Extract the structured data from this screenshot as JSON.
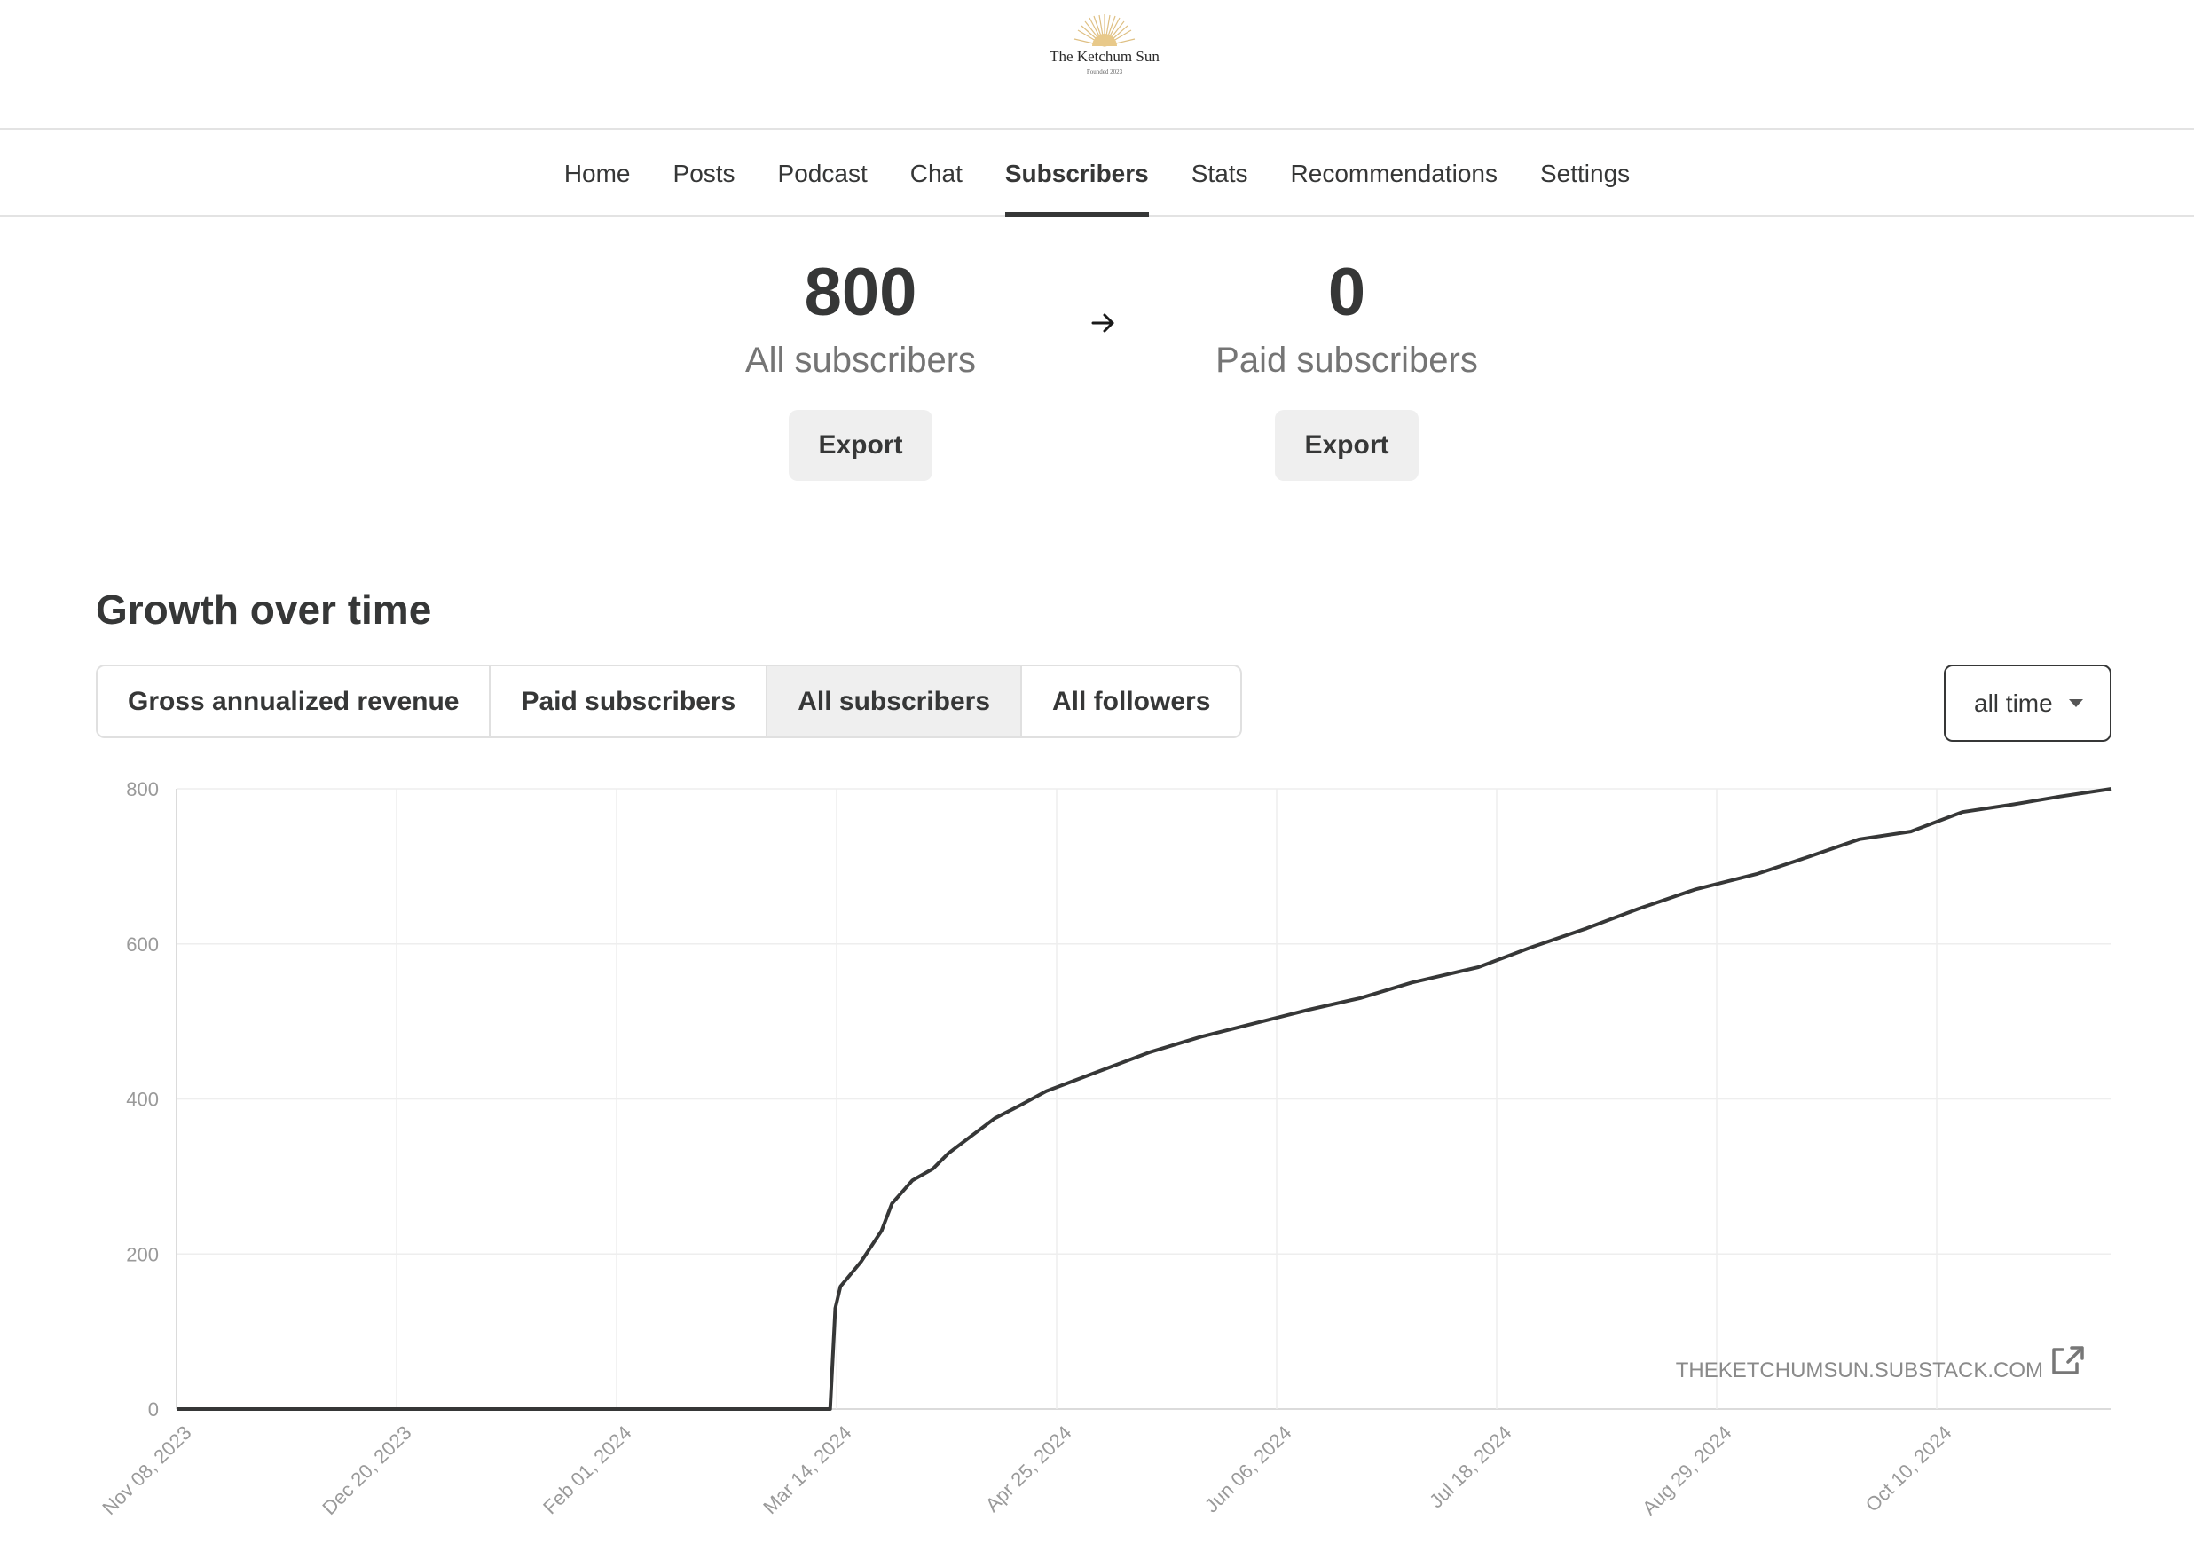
{
  "brand": {
    "name": "The Ketchum Sun",
    "tagline": "Founded 2023"
  },
  "nav": {
    "items": [
      {
        "label": "Home",
        "active": false
      },
      {
        "label": "Posts",
        "active": false
      },
      {
        "label": "Podcast",
        "active": false
      },
      {
        "label": "Chat",
        "active": false
      },
      {
        "label": "Subscribers",
        "active": true
      },
      {
        "label": "Stats",
        "active": false
      },
      {
        "label": "Recommendations",
        "active": false
      },
      {
        "label": "Settings",
        "active": false
      }
    ]
  },
  "stats": {
    "all": {
      "value": "800",
      "label": "All subscribers",
      "button": "Export"
    },
    "arrow_icon": "arrow-right-icon",
    "paid": {
      "value": "0",
      "label": "Paid subscribers",
      "button": "Export"
    }
  },
  "growth": {
    "title": "Growth over time",
    "tabs": [
      {
        "label": "Gross annualized revenue",
        "active": false
      },
      {
        "label": "Paid subscribers",
        "active": false
      },
      {
        "label": "All subscribers",
        "active": true
      },
      {
        "label": "All followers",
        "active": false
      }
    ],
    "range": {
      "selected": "all time",
      "icon": "caret-down-icon"
    },
    "watermark": "THEKETCHUMSUN.SUBSTACK.COM",
    "watermark_icon": "external-link-icon"
  },
  "colors": {
    "line": "#363737",
    "grid": "#eeeeee",
    "axis_text": "#9a9a9a",
    "button_bg": "#efefef"
  },
  "chart_data": {
    "type": "line",
    "title": "",
    "xlabel": "",
    "ylabel": "",
    "x_ticks": [
      "Nov 08, 2023",
      "Dec 20, 2023",
      "Feb 01, 2024",
      "Mar 14, 2024",
      "Apr 25, 2024",
      "Jun 06, 2024",
      "Jul 18, 2024",
      "Aug 29, 2024",
      "Oct 10, 2024"
    ],
    "y_ticks": [
      0,
      200,
      400,
      600,
      800
    ],
    "xlim": [
      "2023-11-08",
      "2024-11-18"
    ],
    "ylim": [
      0,
      800
    ],
    "grid": true,
    "series": [
      {
        "name": "",
        "x": [
          "2023-11-08",
          "2024-03-14",
          "2024-03-15",
          "2024-03-16",
          "2024-03-20",
          "2024-03-24",
          "2024-03-26",
          "2024-03-30",
          "2024-04-03",
          "2024-04-06",
          "2024-04-10",
          "2024-04-15",
          "2024-04-20",
          "2024-04-25",
          "2024-05-05",
          "2024-05-15",
          "2024-05-25",
          "2024-06-06",
          "2024-06-15",
          "2024-06-25",
          "2024-07-05",
          "2024-07-18",
          "2024-07-28",
          "2024-08-08",
          "2024-08-18",
          "2024-08-29",
          "2024-09-10",
          "2024-09-20",
          "2024-09-30",
          "2024-10-10",
          "2024-10-20",
          "2024-10-30",
          "2024-11-08",
          "2024-11-18"
        ],
        "values": [
          0,
          0,
          130,
          158,
          190,
          230,
          265,
          295,
          310,
          330,
          350,
          375,
          392,
          410,
          435,
          460,
          480,
          500,
          515,
          530,
          550,
          570,
          595,
          620,
          645,
          670,
          690,
          712,
          735,
          745,
          770,
          780,
          790,
          800
        ]
      }
    ]
  }
}
